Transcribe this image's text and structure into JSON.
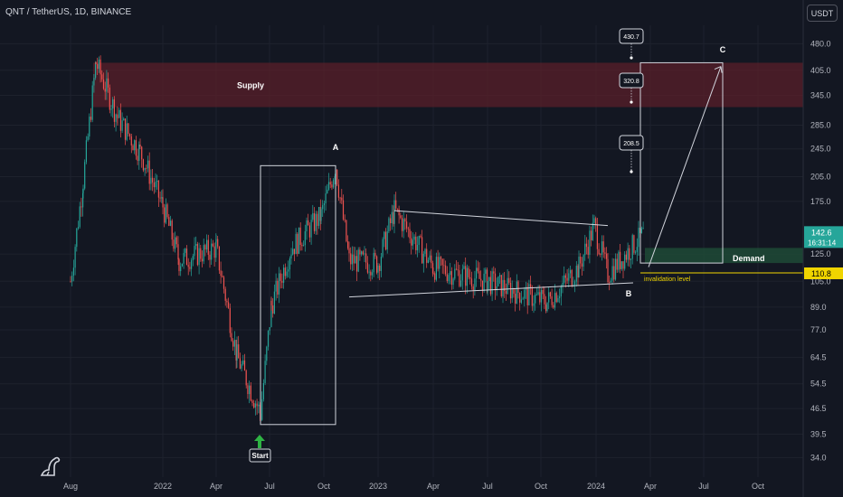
{
  "header": {
    "symbol_line": "QNT / TetherUS, 1D, BINANCE"
  },
  "price_scale": {
    "currency": "USDT"
  },
  "colors": {
    "background": "#131722",
    "up": "#26a69a",
    "down": "#ef5350",
    "supply_zone": "#5a1f2a",
    "demand_zone": "#1f4a36",
    "invalidation": "#f0d500",
    "current_price_bg": "#26a69a"
  },
  "chart_data": {
    "type": "candlestick",
    "title": "QNT / TetherUS, 1D, BINANCE",
    "y_scale": "log",
    "ylim": [
      30,
      540
    ],
    "y_ticks": [
      34.0,
      39.5,
      46.5,
      54.5,
      64.5,
      77.0,
      89.0,
      105.0,
      125.0,
      175.0,
      205.0,
      245.0,
      285.0,
      345.0,
      405.0,
      480.0
    ],
    "x_ticks": [
      "Aug",
      "2022",
      "Apr",
      "Jul",
      "Oct",
      "2023",
      "Apr",
      "Jul",
      "Oct",
      "2024",
      "Apr",
      "Jul",
      "Oct"
    ],
    "price_path": [
      {
        "date": "Aug",
        "price": 105
      },
      {
        "date": "Aug (mid)",
        "price": 200
      },
      {
        "date": "Sep 2021",
        "price": 425
      },
      {
        "date": "Oct 2021",
        "price": 300
      },
      {
        "date": "Nov 2021",
        "price": 240
      },
      {
        "date": "2022",
        "price": 170
      },
      {
        "date": "Feb 2022",
        "price": 120
      },
      {
        "date": "Apr 2022",
        "price": 130
      },
      {
        "date": "May 2022",
        "price": 65
      },
      {
        "date": "Jun 2022",
        "price": 45
      },
      {
        "date": "Jul 2022",
        "price": 90
      },
      {
        "date": "Aug 2022",
        "price": 130
      },
      {
        "date": "Oct 2022",
        "price": 160
      },
      {
        "date": "Oct 2022 (top)",
        "price": 220
      },
      {
        "date": "Nov 2022",
        "price": 120
      },
      {
        "date": "2023",
        "price": 118
      },
      {
        "date": "Jan 2023",
        "price": 165
      },
      {
        "date": "Mar 2023",
        "price": 115
      },
      {
        "date": "Jul 2023",
        "price": 105
      },
      {
        "date": "Oct 2023",
        "price": 92
      },
      {
        "date": "Dec 2023",
        "price": 115
      },
      {
        "date": "Dec 2023 (spike)",
        "price": 150
      },
      {
        "date": "2024",
        "price": 110
      },
      {
        "date": "Mar 2024",
        "price": 142.6
      }
    ],
    "zones": [
      {
        "label": "Supply",
        "from": 320,
        "to": 425
      },
      {
        "label": "Demand",
        "from": 118,
        "to": 130
      }
    ],
    "invalidation": {
      "label": "invalidation level",
      "price": 110.8
    },
    "targets": [
      "430.7",
      "320.8",
      "208.5"
    ],
    "wave_labels": [
      "A",
      "B",
      "C"
    ],
    "annotations": {
      "start": "Start"
    },
    "current_price": "142.6",
    "countdown": "16:31:14",
    "invalidation_price_label": "110.8"
  }
}
